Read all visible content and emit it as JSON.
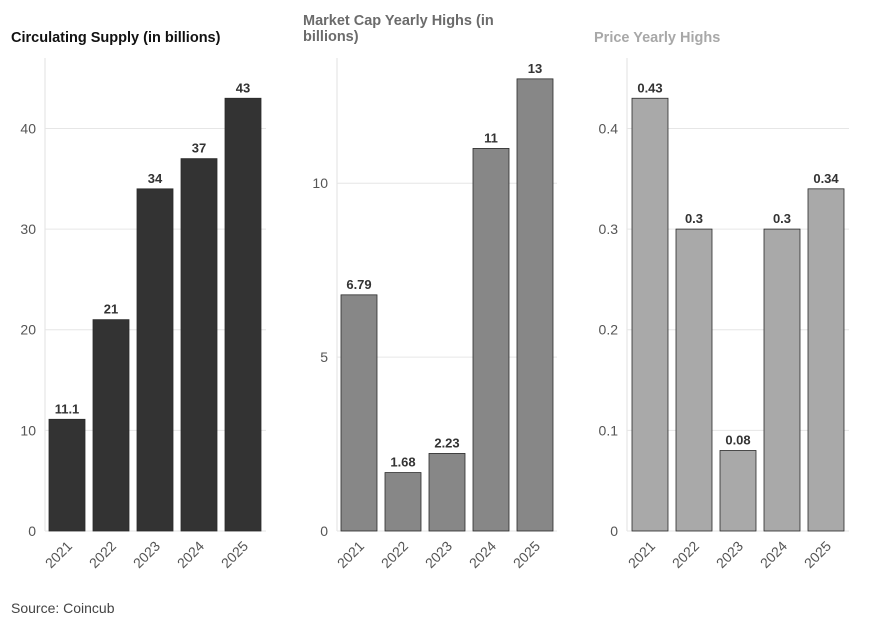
{
  "chart_data": [
    {
      "type": "bar",
      "title": "Circulating Supply (in billions)",
      "categories": [
        "2021",
        "2022",
        "2023",
        "2024",
        "2025"
      ],
      "values": [
        11.1,
        21,
        34,
        37,
        43
      ],
      "data_labels": [
        "11.1",
        "21",
        "34",
        "37",
        "43"
      ],
      "ylim": [
        0,
        47
      ],
      "yticks": [
        0,
        10,
        20,
        30,
        40
      ],
      "grid": true,
      "color": "#333333"
    },
    {
      "type": "bar",
      "title": "Market Cap Yearly Highs (in billions)",
      "categories": [
        "2021",
        "2022",
        "2023",
        "2024",
        "2025"
      ],
      "values": [
        6.79,
        1.68,
        2.23,
        11,
        13
      ],
      "data_labels": [
        "6.79",
        "1.68",
        "2.23",
        "11",
        "13"
      ],
      "ylim": [
        0,
        13.6
      ],
      "yticks": [
        0,
        5,
        10
      ],
      "grid": true,
      "color": "#878787"
    },
    {
      "type": "bar",
      "title": "Price Yearly Highs",
      "categories": [
        "2021",
        "2022",
        "2023",
        "2024",
        "2025"
      ],
      "values": [
        0.43,
        0.3,
        0.08,
        0.3,
        0.34
      ],
      "data_labels": [
        "0.43",
        "0.3",
        "0.08",
        "0.3",
        "0.34"
      ],
      "ylim": [
        0,
        0.47
      ],
      "yticks": [
        0,
        0.1,
        0.2,
        0.3,
        0.4
      ],
      "ytick_labels": [
        "0",
        "0.1",
        "0.2",
        "0.3",
        "0.4"
      ],
      "grid": true,
      "color": "#a9a9a9"
    }
  ],
  "source": "Source: Coincub"
}
